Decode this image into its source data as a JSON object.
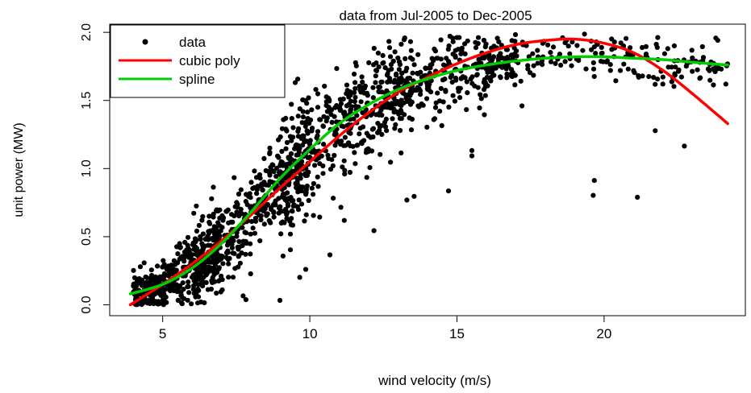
{
  "chart_data": {
    "type": "scatter",
    "title": "data from Jul-2005 to Dec-2005",
    "xlabel": "wind velocity (m/s)",
    "ylabel": "unit power (MW)",
    "x_ticks": [
      5,
      10,
      15,
      20
    ],
    "y_ticks": [
      0.0,
      0.5,
      1.0,
      1.5,
      2.0
    ],
    "y_tick_labels": [
      "0.0",
      "0.5",
      "1.0",
      "1.5",
      "2.0"
    ],
    "xlim": [
      3.2,
      24.8
    ],
    "ylim": [
      -0.08,
      2.06
    ],
    "legend_position": "top-left",
    "legend": [
      {
        "label": "data",
        "marker": "point",
        "color": "#000000"
      },
      {
        "label": "cubic poly",
        "marker": "line",
        "color": "#ff0000"
      },
      {
        "label": "spline",
        "marker": "line",
        "color": "#00cc00"
      }
    ],
    "series": [
      {
        "name": "data",
        "kind": "points",
        "color": "#000000",
        "note_on_count": "the original shows roughly 3000 observations; the points are generated by the script to follow the same trend and spread",
        "x_range": [
          3.9,
          24.2
        ],
        "y_range": [
          0.0,
          2.0
        ]
      },
      {
        "name": "cubic poly",
        "kind": "line",
        "color": "#ff0000",
        "x": [
          3.9,
          5,
          6,
          7,
          8,
          9,
          10,
          11,
          12,
          13,
          14,
          15,
          16,
          17,
          18,
          19,
          20,
          21,
          22,
          23,
          24.2
        ],
        "y": [
          0.0,
          0.15,
          0.3,
          0.47,
          0.66,
          0.86,
          1.05,
          1.24,
          1.41,
          1.56,
          1.67,
          1.77,
          1.85,
          1.91,
          1.94,
          1.95,
          1.92,
          1.85,
          1.72,
          1.55,
          1.33
        ]
      },
      {
        "name": "spline",
        "kind": "line",
        "color": "#00cc00",
        "x": [
          3.9,
          5,
          6,
          7,
          8,
          9,
          10,
          11,
          12,
          13,
          14,
          15,
          16,
          17,
          18,
          19,
          20,
          21,
          22,
          23,
          24.2
        ],
        "y": [
          0.08,
          0.15,
          0.27,
          0.45,
          0.68,
          0.93,
          1.14,
          1.33,
          1.47,
          1.58,
          1.66,
          1.72,
          1.76,
          1.79,
          1.81,
          1.82,
          1.82,
          1.81,
          1.8,
          1.78,
          1.76
        ]
      }
    ]
  }
}
